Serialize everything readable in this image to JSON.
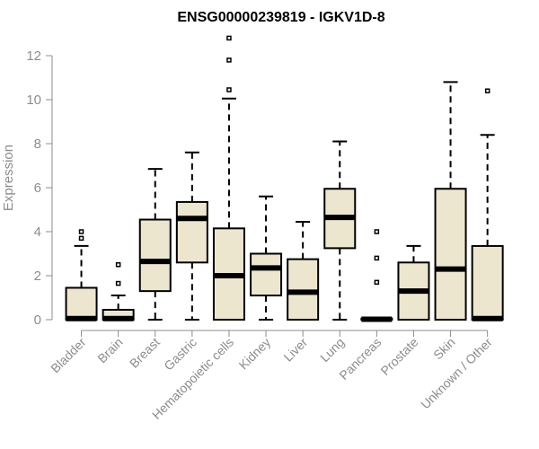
{
  "chart_data": {
    "type": "box",
    "title": "ENSG00000239819 - IGKV1D-8",
    "xlabel": "",
    "ylabel": "Expression",
    "ylim": [
      0,
      12.8
    ],
    "yticks": [
      0,
      2,
      4,
      6,
      8,
      10,
      12
    ],
    "box_fill": "#ede6ce",
    "categories": [
      "Bladder",
      "Brain",
      "Breast",
      "Gastric",
      "Hematopoietic cells",
      "Kidney",
      "Liver",
      "Lung",
      "Pancreas",
      "Prostate",
      "Skin",
      "Unknown / Other"
    ],
    "boxes": [
      {
        "whisker_low": 0,
        "q1": 0,
        "median": 0.05,
        "q3": 1.45,
        "whisker_high": 3.35,
        "outliers": [
          3.7,
          4.0
        ]
      },
      {
        "whisker_low": 0,
        "q1": 0,
        "median": 0.05,
        "q3": 0.45,
        "whisker_high": 1.1,
        "outliers": [
          1.65,
          2.5
        ]
      },
      {
        "whisker_low": 0,
        "q1": 1.3,
        "median": 2.65,
        "q3": 4.55,
        "whisker_high": 6.85,
        "outliers": []
      },
      {
        "whisker_low": 0,
        "q1": 2.6,
        "median": 4.6,
        "q3": 5.35,
        "whisker_high": 7.6,
        "outliers": []
      },
      {
        "whisker_low": 0,
        "q1": 0,
        "median": 2.0,
        "q3": 4.15,
        "whisker_high": 10.05,
        "outliers": [
          10.45,
          11.8,
          12.8
        ]
      },
      {
        "whisker_low": 0,
        "q1": 1.1,
        "median": 2.35,
        "q3": 3.0,
        "whisker_high": 5.6,
        "outliers": []
      },
      {
        "whisker_low": 0,
        "q1": 0,
        "median": 1.25,
        "q3": 2.75,
        "whisker_high": 4.45,
        "outliers": []
      },
      {
        "whisker_low": 0,
        "q1": 3.25,
        "median": 4.65,
        "q3": 5.95,
        "whisker_high": 8.1,
        "outliers": []
      },
      {
        "whisker_low": 0,
        "q1": 0,
        "median": 0.02,
        "q3": 0.05,
        "whisker_high": 0.05,
        "outliers": [
          1.7,
          2.8,
          4.0
        ]
      },
      {
        "whisker_low": 0,
        "q1": 0,
        "median": 1.3,
        "q3": 2.6,
        "whisker_high": 3.35,
        "outliers": []
      },
      {
        "whisker_low": 0,
        "q1": 0,
        "median": 2.3,
        "q3": 5.95,
        "whisker_high": 10.8,
        "outliers": []
      },
      {
        "whisker_low": 0,
        "q1": 0,
        "median": 0.05,
        "q3": 3.35,
        "whisker_high": 8.4,
        "outliers": [
          10.4
        ]
      }
    ]
  }
}
